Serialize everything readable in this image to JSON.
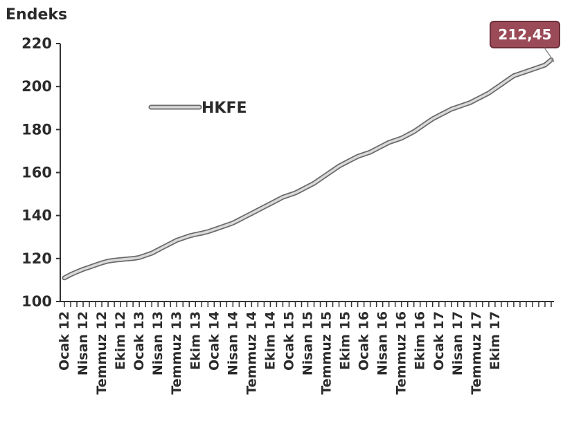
{
  "chart_data": {
    "type": "line",
    "ylabel": "Endeks",
    "ylim": [
      100,
      220
    ],
    "yticks": [
      100,
      120,
      140,
      160,
      180,
      200,
      220
    ],
    "grid": false,
    "legend_position": "top-left",
    "x_tick_labels": [
      "Ocak 12",
      "Nisan 12",
      "Temmuz 12",
      "Ekim 12",
      "Ocak 13",
      "Nisan 13",
      "Temmuz 13",
      "Ekim 13",
      "Ocak 14",
      "Nisan 14",
      "Temmuz 14",
      "Ekim 14",
      "Ocak 15",
      "Nisan 15",
      "Temmuz 15",
      "Ekim 15",
      "Ocak 16",
      "Nisan 16",
      "Temmuz 16",
      "Ekim 16",
      "Ocak 17",
      "Nisan 17",
      "Temmuz 17",
      "Ekim 17"
    ],
    "series": [
      {
        "name": "HKFE",
        "color": "#9a9a9a",
        "values": [
          111.0,
          112.5,
          113.8,
          115.0,
          116.0,
          117.0,
          118.0,
          118.8,
          119.2,
          119.5,
          119.8,
          120.0,
          120.5,
          121.5,
          122.5,
          124.0,
          125.5,
          127.0,
          128.5,
          129.5,
          130.5,
          131.2,
          131.8,
          132.5,
          133.5,
          134.5,
          135.5,
          136.5,
          138.0,
          139.5,
          141.0,
          142.5,
          144.0,
          145.5,
          147.0,
          148.5,
          149.5,
          150.5,
          152.0,
          153.5,
          155.0,
          157.0,
          159.0,
          161.0,
          163.0,
          164.5,
          166.0,
          167.5,
          168.5,
          169.5,
          171.0,
          172.5,
          174.0,
          175.0,
          176.0,
          177.5,
          179.0,
          181.0,
          183.0,
          185.0,
          186.5,
          188.0,
          189.5,
          190.5,
          191.5,
          192.5,
          194.0,
          195.5,
          197.0,
          199.0,
          201.0,
          203.0,
          205.0,
          206.0,
          207.0,
          208.0,
          209.0,
          210.0,
          212.45
        ]
      }
    ],
    "annotations": [
      {
        "text": "212,45",
        "color": "#9b4a57"
      }
    ]
  }
}
